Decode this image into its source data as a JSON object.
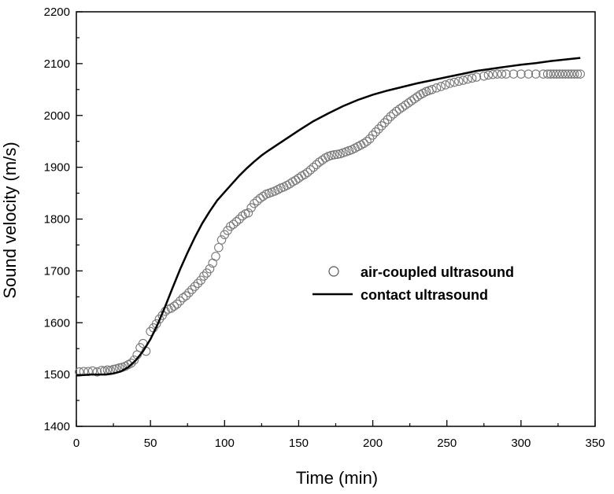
{
  "chart_data": {
    "type": "scatter",
    "xlabel": "Time (min)",
    "ylabel": "Sound velocity (m/s)",
    "xlim": [
      0,
      350
    ],
    "ylim": [
      1400,
      2200
    ],
    "x_ticks": [
      0,
      50,
      100,
      150,
      200,
      250,
      300,
      350
    ],
    "y_ticks": [
      1400,
      1500,
      1600,
      1700,
      1800,
      1900,
      2000,
      2100,
      2200
    ],
    "x_tick_labels": [
      "0",
      "50",
      "100",
      "150",
      "200",
      "250",
      "300",
      "350"
    ],
    "y_tick_labels": [
      "1400",
      "1500",
      "1600",
      "1700",
      "1800",
      "1900",
      "2000",
      "2100",
      "2200"
    ],
    "legend_position": "center-right",
    "grid": false,
    "series": [
      {
        "name": "air-coupled ultrasound",
        "style": "open-circle",
        "color": "#777777",
        "x": [
          2,
          5,
          8,
          11,
          14,
          17,
          19,
          21,
          23,
          25,
          27,
          29,
          31,
          33,
          35,
          37,
          39,
          41,
          43,
          45,
          47,
          50,
          52,
          54,
          56,
          58,
          60,
          62,
          64,
          66,
          68,
          70,
          72,
          74,
          76,
          78,
          80,
          82,
          84,
          86,
          88,
          90,
          92,
          94,
          96,
          98,
          100,
          102,
          104,
          106,
          108,
          110,
          112,
          114,
          116,
          118,
          120,
          122,
          124,
          126,
          128,
          130,
          132,
          134,
          136,
          138,
          140,
          142,
          144,
          146,
          148,
          150,
          152,
          154,
          156,
          158,
          160,
          162,
          164,
          166,
          168,
          170,
          172,
          174,
          176,
          178,
          180,
          182,
          184,
          186,
          188,
          190,
          192,
          194,
          196,
          198,
          200,
          202,
          204,
          206,
          208,
          210,
          212,
          214,
          216,
          218,
          220,
          222,
          224,
          226,
          228,
          230,
          232,
          234,
          236,
          238,
          240,
          243,
          246,
          249,
          252,
          255,
          258,
          261,
          264,
          267,
          270,
          275,
          278,
          281,
          284,
          287,
          290,
          295,
          300,
          305,
          310,
          315,
          318,
          320,
          322,
          324,
          326,
          328,
          330,
          332,
          334,
          336,
          338,
          340
        ],
        "y": [
          1505,
          1506,
          1506,
          1507,
          1505,
          1508,
          1507,
          1509,
          1508,
          1510,
          1511,
          1513,
          1514,
          1516,
          1519,
          1522,
          1528,
          1538,
          1552,
          1560,
          1545,
          1583,
          1590,
          1598,
          1607,
          1614,
          1622,
          1626,
          1628,
          1632,
          1636,
          1642,
          1648,
          1652,
          1658,
          1664,
          1670,
          1676,
          1682,
          1690,
          1696,
          1704,
          1715,
          1728,
          1745,
          1760,
          1770,
          1778,
          1786,
          1790,
          1795,
          1800,
          1806,
          1810,
          1812,
          1822,
          1830,
          1835,
          1840,
          1844,
          1848,
          1850,
          1852,
          1854,
          1857,
          1860,
          1862,
          1865,
          1868,
          1872,
          1875,
          1879,
          1883,
          1886,
          1890,
          1895,
          1900,
          1905,
          1910,
          1914,
          1918,
          1921,
          1923,
          1924,
          1925,
          1926,
          1928,
          1930,
          1932,
          1934,
          1937,
          1940,
          1943,
          1946,
          1950,
          1955,
          1962,
          1968,
          1974,
          1980,
          1986,
          1992,
          1998,
          2003,
          2008,
          2012,
          2016,
          2020,
          2024,
          2028,
          2032,
          2036,
          2040,
          2043,
          2046,
          2048,
          2050,
          2053,
          2056,
          2059,
          2062,
          2064,
          2066,
          2068,
          2070,
          2072,
          2074,
          2076,
          2078,
          2079,
          2080,
          2080,
          2080,
          2080,
          2080,
          2080,
          2080,
          2080,
          2080,
          2080,
          2080,
          2080,
          2080,
          2080,
          2080,
          2080,
          2080,
          2080,
          2080,
          2080
        ]
      },
      {
        "name": "contact ultrasound",
        "style": "line",
        "color": "#000000",
        "x": [
          0,
          10,
          20,
          25,
          30,
          35,
          40,
          45,
          50,
          55,
          60,
          65,
          70,
          75,
          80,
          85,
          90,
          95,
          100,
          105,
          110,
          115,
          120,
          125,
          130,
          140,
          150,
          160,
          170,
          180,
          190,
          200,
          210,
          220,
          230,
          240,
          250,
          260,
          270,
          280,
          290,
          300,
          310,
          320,
          330,
          340
        ],
        "y": [
          1498,
          1500,
          1500,
          1502,
          1506,
          1514,
          1527,
          1545,
          1568,
          1598,
          1632,
          1668,
          1703,
          1735,
          1765,
          1792,
          1815,
          1836,
          1852,
          1868,
          1884,
          1898,
          1911,
          1923,
          1933,
          1952,
          1971,
          1989,
          2004,
          2018,
          2030,
          2040,
          2048,
          2055,
          2062,
          2068,
          2074,
          2080,
          2086,
          2090,
          2094,
          2098,
          2101,
          2105,
          2108,
          2111
        ]
      }
    ]
  }
}
